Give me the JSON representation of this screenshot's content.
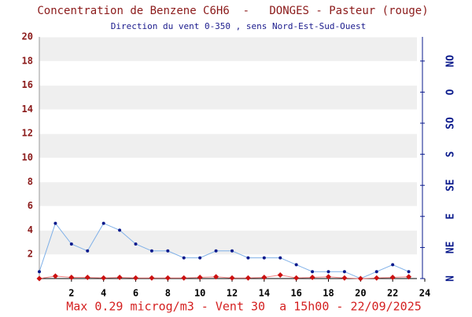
{
  "chart_data": {
    "type": "line",
    "title": "Concentration de Benzene C6H6  -   DONGES - Pasteur (rouge)",
    "subtitle": "Direction du vent 0-350 , sens Nord-Est-Sud-Ouest",
    "footer": "Max 0.29 microg/m3 - Vent 30  a 15h00 - 22/09/2025",
    "x": [
      0,
      1,
      2,
      3,
      4,
      5,
      6,
      7,
      8,
      9,
      10,
      11,
      12,
      13,
      14,
      15,
      16,
      17,
      18,
      19,
      20,
      21,
      22,
      23
    ],
    "xlim": [
      0,
      24
    ],
    "xticks": [
      2,
      4,
      6,
      8,
      10,
      12,
      14,
      16,
      18,
      20,
      22,
      24
    ],
    "ylim": [
      0,
      20
    ],
    "yticks": [
      2,
      4,
      6,
      8,
      10,
      12,
      14,
      16,
      18,
      20
    ],
    "y2lim": [
      0,
      350
    ],
    "y2ticks": [
      {
        "value": 0,
        "label": "N"
      },
      {
        "value": 45,
        "label": "NE"
      },
      {
        "value": 90,
        "label": "E"
      },
      {
        "value": 135,
        "label": "SE"
      },
      {
        "value": 180,
        "label": "S"
      },
      {
        "value": 225,
        "label": "SO"
      },
      {
        "value": 270,
        "label": "O"
      },
      {
        "value": 315,
        "label": "NO"
      }
    ],
    "grid": true,
    "series": [
      {
        "name": "Vent",
        "axis": "y2",
        "color": "#7fb0e8",
        "marker_color": "#0a1a8c",
        "marker": "circle",
        "values": [
          10,
          80,
          50,
          40,
          80,
          70,
          50,
          40,
          40,
          30,
          30,
          40,
          40,
          30,
          30,
          30,
          20,
          10,
          10,
          10,
          0,
          10,
          20,
          10
        ]
      },
      {
        "name": "Benzene",
        "color": "#f08080",
        "marker_color": "#cc1111",
        "marker": "diamond",
        "values": [
          0,
          0.2,
          0.1,
          0.1,
          0.05,
          0.1,
          0.05,
          0.05,
          0.05,
          0.05,
          0.1,
          0.15,
          0.05,
          0.05,
          0.1,
          0.29,
          0.05,
          0.1,
          0.15,
          0.05,
          0,
          0.05,
          0.1,
          0.15
        ]
      }
    ]
  }
}
